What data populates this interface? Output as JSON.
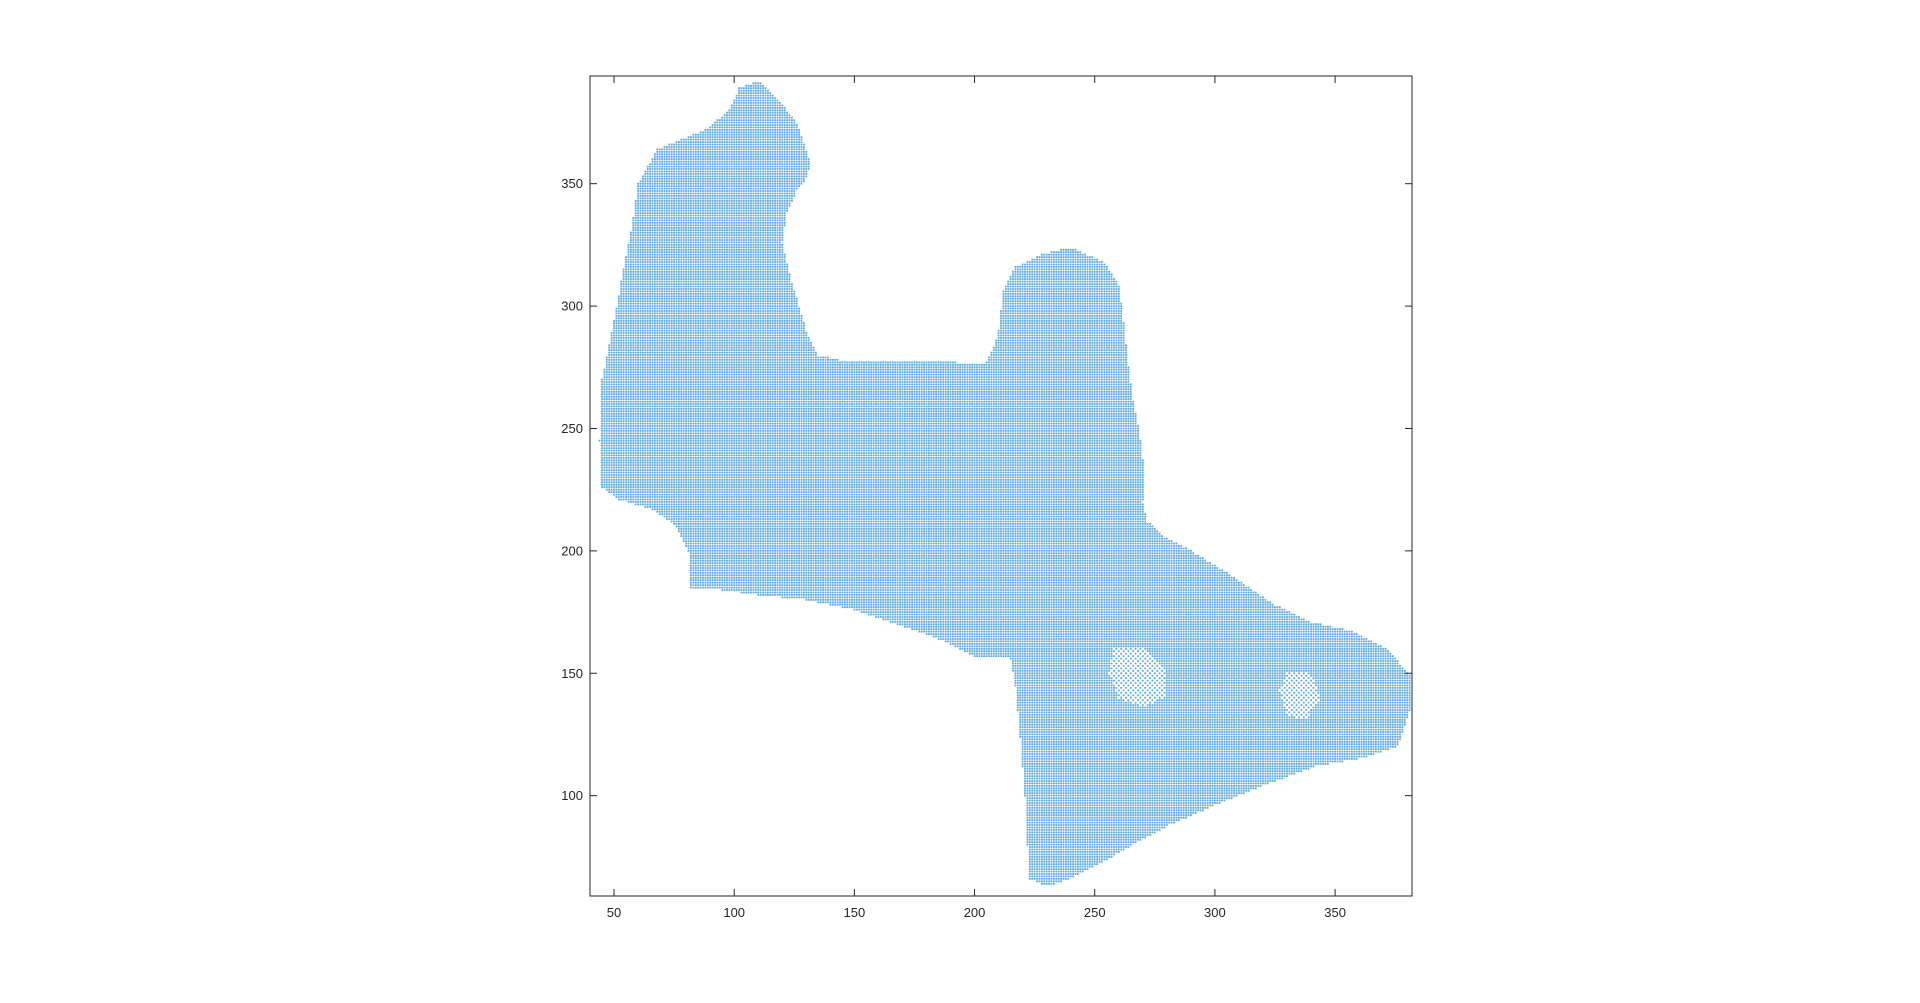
{
  "chart_data": {
    "type": "scatter",
    "title": "",
    "xlabel": "",
    "ylabel": "",
    "xlim": [
      40,
      382
    ],
    "ylim": [
      59,
      394
    ],
    "xticks": [
      50,
      100,
      150,
      200,
      250,
      300,
      350
    ],
    "yticks": [
      100,
      150,
      200,
      250,
      300,
      350
    ],
    "xtick_labels": [
      "50",
      "100",
      "150",
      "200",
      "250",
      "300",
      "350"
    ],
    "ytick_labels": [
      "100",
      "150",
      "200",
      "250",
      "300",
      "350"
    ],
    "grid": false,
    "box": true,
    "marker_color": "#4a9fd8",
    "axis_color": "#262626",
    "series": [
      {
        "point_spacing": 1,
        "outline": [
          [
            102,
            389
          ],
          [
            110,
            392
          ],
          [
            118,
            385
          ],
          [
            126,
            375
          ],
          [
            132,
            358
          ],
          [
            130,
            352
          ],
          [
            126,
            347
          ],
          [
            122,
            338
          ],
          [
            120,
            326
          ],
          [
            124,
            310
          ],
          [
            130,
            290
          ],
          [
            135,
            280
          ],
          [
            144,
            278
          ],
          [
            160,
            278
          ],
          [
            176,
            278
          ],
          [
            193,
            277
          ],
          [
            205,
            277
          ],
          [
            208,
            283
          ],
          [
            210,
            290
          ],
          [
            212,
            306
          ],
          [
            217,
            316
          ],
          [
            228,
            321
          ],
          [
            240,
            324
          ],
          [
            254,
            318
          ],
          [
            260,
            309
          ],
          [
            262,
            294
          ],
          [
            264,
            276
          ],
          [
            266,
            262
          ],
          [
            269,
            246
          ],
          [
            271,
            230
          ],
          [
            270,
            220
          ],
          [
            272,
            212
          ],
          [
            279,
            206
          ],
          [
            292,
            199
          ],
          [
            310,
            188
          ],
          [
            325,
            178
          ],
          [
            340,
            171
          ],
          [
            358,
            167
          ],
          [
            372,
            160
          ],
          [
            382,
            148
          ],
          [
            381,
            134
          ],
          [
            376,
            120
          ],
          [
            360,
            115
          ],
          [
            342,
            112
          ],
          [
            320,
            104
          ],
          [
            300,
            96
          ],
          [
            281,
            88
          ],
          [
            266,
            80
          ],
          [
            252,
            72
          ],
          [
            240,
            66
          ],
          [
            230,
            63
          ],
          [
            223,
            66
          ],
          [
            222,
            80
          ],
          [
            221,
            100
          ],
          [
            219,
            124
          ],
          [
            217,
            145
          ],
          [
            215,
            156
          ],
          [
            200,
            157
          ],
          [
            190,
            162
          ],
          [
            180,
            166
          ],
          [
            165,
            171
          ],
          [
            150,
            176
          ],
          [
            130,
            180
          ],
          [
            110,
            182
          ],
          [
            95,
            184
          ],
          [
            82,
            185
          ],
          [
            81,
            200
          ],
          [
            76,
            210
          ],
          [
            66,
            217
          ],
          [
            52,
            221
          ],
          [
            45,
            226
          ],
          [
            44,
            245
          ],
          [
            45,
            270
          ],
          [
            50,
            294
          ],
          [
            53,
            310
          ],
          [
            57,
            330
          ],
          [
            60,
            350
          ],
          [
            68,
            364
          ],
          [
            88,
            372
          ],
          [
            98,
            380
          ]
        ],
        "holes": [
          [
            [
              258,
              161
            ],
            [
              272,
              160
            ],
            [
              280,
              152
            ],
            [
              279,
              140
            ],
            [
              270,
              136
            ],
            [
              260,
              140
            ],
            [
              256,
              150
            ]
          ],
          [
            [
              330,
              151
            ],
            [
              340,
              150
            ],
            [
              344,
              140
            ],
            [
              338,
              131
            ],
            [
              330,
              133
            ],
            [
              327,
              143
            ]
          ]
        ]
      }
    ]
  }
}
